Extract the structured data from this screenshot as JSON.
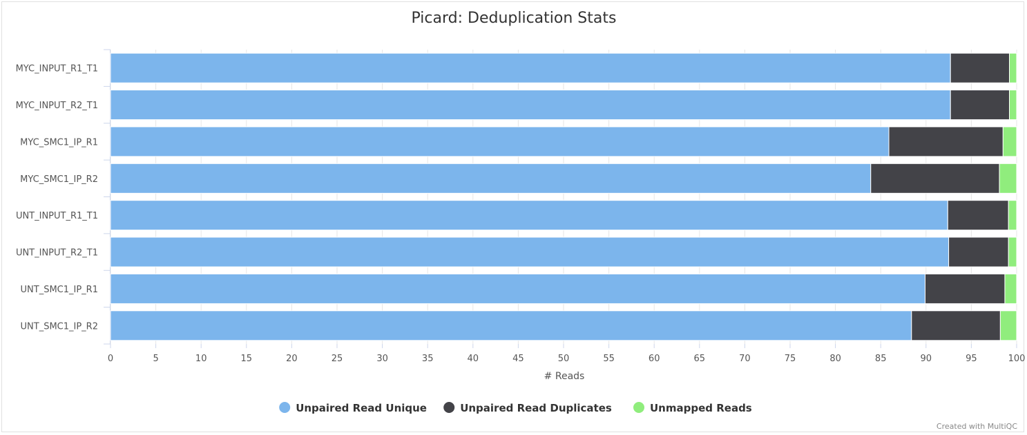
{
  "chart_data": {
    "type": "bar",
    "orientation": "horizontal",
    "stacked": true,
    "stack_mode": "percent",
    "title": "Picard: Deduplication Stats",
    "xlabel": "# Reads",
    "ylabel": "",
    "xlim": [
      0,
      100
    ],
    "x_ticks": [
      0,
      5,
      10,
      15,
      20,
      25,
      30,
      35,
      40,
      45,
      50,
      55,
      60,
      65,
      70,
      75,
      80,
      85,
      90,
      95,
      100
    ],
    "grid": true,
    "legend_position": "bottom-center",
    "categories": [
      "MYC_INPUT_R1_T1",
      "MYC_INPUT_R2_T1",
      "MYC_SMC1_IP_R1",
      "MYC_SMC1_IP_R2",
      "UNT_INPUT_R1_T1",
      "UNT_INPUT_R2_T1",
      "UNT_SMC1_IP_R1",
      "UNT_SMC1_IP_R2"
    ],
    "series": [
      {
        "name": "Unpaired Read Unique",
        "color": "#7cb5ec",
        "values": [
          92.7,
          92.7,
          85.9,
          83.9,
          92.4,
          92.5,
          89.9,
          88.4
        ]
      },
      {
        "name": "Unpaired Read Duplicates",
        "color": "#434348",
        "values": [
          6.5,
          6.5,
          12.6,
          14.2,
          6.7,
          6.6,
          8.8,
          9.8
        ]
      },
      {
        "name": "Unmapped Reads",
        "color": "#90ed7d",
        "values": [
          0.8,
          0.8,
          1.5,
          1.9,
          0.9,
          0.9,
          1.3,
          1.8
        ]
      }
    ]
  },
  "credit": "Created with MultiQC"
}
